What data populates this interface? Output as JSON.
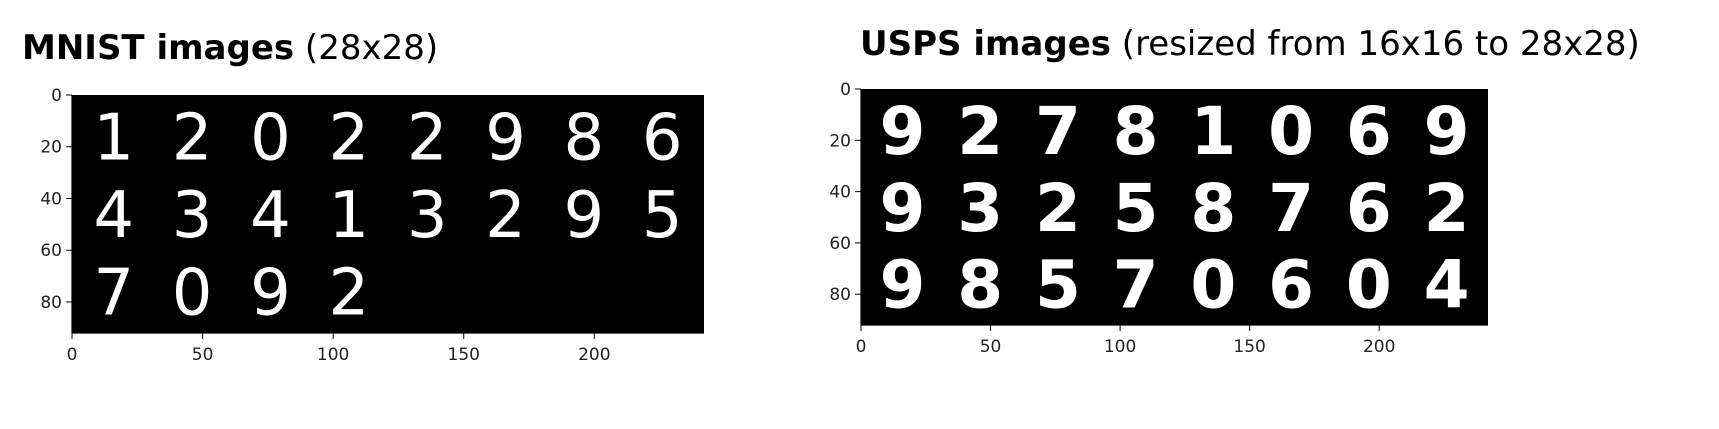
{
  "chart_data": [
    {
      "type": "image",
      "title_bold": "MNIST images",
      "title_rest": " (28x28)",
      "xticks": [
        0,
        50,
        100,
        150,
        200
      ],
      "yticks": [
        0,
        20,
        40,
        60,
        80
      ],
      "xlim": [
        0,
        242
      ],
      "ylim": [
        92,
        0
      ],
      "grid": false,
      "background": "#000000",
      "digits": [
        [
          "1",
          "2",
          "0",
          "2",
          "2",
          "9",
          "8",
          "6"
        ],
        [
          "4",
          "3",
          "4",
          "1",
          "3",
          "2",
          "9",
          "5"
        ],
        [
          "7",
          "0",
          "9",
          "2"
        ]
      ]
    },
    {
      "type": "image",
      "title_bold": "USPS images",
      "title_rest": " (resized from 16x16 to 28x28)",
      "xticks": [
        0,
        50,
        100,
        150,
        200
      ],
      "yticks": [
        0,
        20,
        40,
        60,
        80
      ],
      "xlim": [
        0,
        242
      ],
      "ylim": [
        92,
        0
      ],
      "grid": false,
      "background": "#000000",
      "digits": [
        [
          "9",
          "2",
          "7",
          "8",
          "1",
          "0",
          "6",
          "9"
        ],
        [
          "9",
          "3",
          "2",
          "5",
          "8",
          "7",
          "6",
          "2"
        ],
        [
          "9",
          "8",
          "5",
          "7",
          "0",
          "6",
          "0",
          "4"
        ]
      ]
    }
  ]
}
